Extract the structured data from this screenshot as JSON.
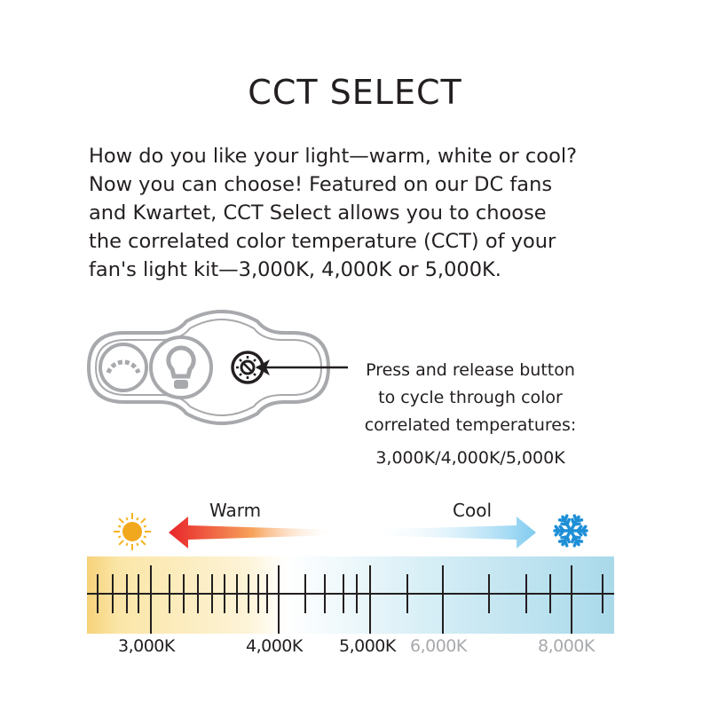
{
  "title": "CCT SELECT",
  "description": [
    "How do you like your light—warm, white or cool?",
    "Now you can choose! Featured on our DC fans",
    "and Kwartet, CCT Select allows you to choose",
    "the correlated color temperature (CCT) of your",
    "fan's light kit—3,000K, 4,000K or 5,000K."
  ],
  "callout": [
    "Press and release button",
    "to cycle through color",
    "correlated temperatures:",
    "3,000K/4,000K/5,000K"
  ],
  "scale": {
    "warm_label": "Warm",
    "cool_label": "Cool",
    "warm_icon": "sun-icon",
    "cool_icon": "snowflake-icon",
    "labels": [
      {
        "text": "3,000K",
        "color": "#231f20"
      },
      {
        "text": "4,000K",
        "color": "#231f20"
      },
      {
        "text": "5,000K",
        "color": "#231f20"
      },
      {
        "text": "6,000K",
        "color": "#a7a9ac"
      },
      {
        "text": "8,000K",
        "color": "#a7a9ac"
      }
    ],
    "colors": {
      "warm": "#f7d88a",
      "neutral": "#ffffff",
      "cool": "#a9d9ea",
      "warm_arrow": "#e8242a",
      "cool_arrow": "#7fcbef"
    }
  },
  "control_icons": [
    "dimmer-icon",
    "light-bulb-icon",
    "cct-select-button-icon"
  ]
}
